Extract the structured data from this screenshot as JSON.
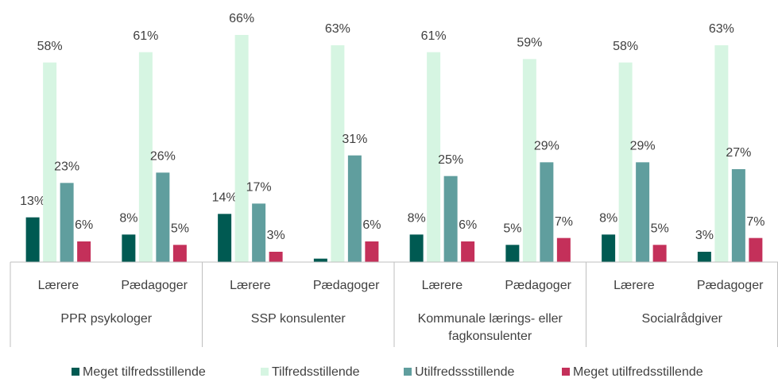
{
  "chart_data": {
    "type": "bar",
    "categories": [
      "Lærere",
      "Pædagoger",
      "Lærere",
      "Pædagoger",
      "Lærere",
      "Pædagoger",
      "Lærere",
      "Pædagoger"
    ],
    "groups": [
      "PPR psykologer",
      "SSP konsulenter",
      "Kommunale lærings- eller fagkonsulenter",
      "Socialrådgiver"
    ],
    "ylim": [
      0,
      70
    ],
    "legend": "bottom",
    "series": [
      {
        "name": "Meget tilfredsstillende",
        "color": "#005a52",
        "values": [
          13,
          8,
          14,
          1,
          8,
          5,
          8,
          3
        ],
        "value_labels": [
          "13%",
          "8%",
          "14%",
          null,
          "8%",
          "5%",
          "8%",
          "3%"
        ]
      },
      {
        "name": "Tilfredsstillende",
        "color": "#d6f5e2",
        "values": [
          58,
          61,
          66,
          63,
          61,
          59,
          58,
          63
        ],
        "value_labels": [
          "58%",
          "61%",
          "66%",
          "63%",
          "61%",
          "59%",
          "58%",
          "63%"
        ]
      },
      {
        "name": "Utilfredssstillende",
        "color": "#609e9e",
        "values": [
          23,
          26,
          17,
          31,
          25,
          29,
          29,
          27
        ],
        "value_labels": [
          "23%",
          "26%",
          "17%",
          "31%",
          "25%",
          "29%",
          "29%",
          "27%"
        ]
      },
      {
        "name": "Meget utilfredsstillende",
        "color": "#c4305a",
        "values": [
          6,
          5,
          3,
          6,
          6,
          7,
          5,
          7
        ],
        "value_labels": [
          "6%",
          "5%",
          "3%",
          "6%",
          "6%",
          "7%",
          "5%",
          "7%"
        ]
      }
    ]
  }
}
